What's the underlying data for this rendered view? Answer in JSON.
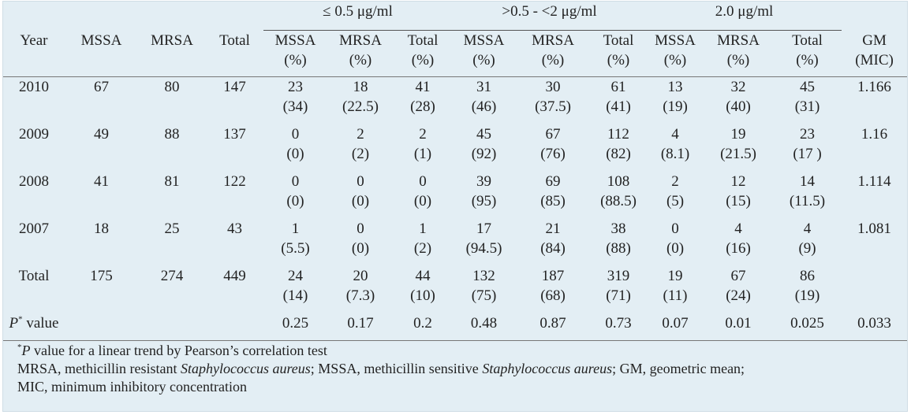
{
  "table": {
    "concentration_groups": [
      "≤ 0.5 μg/ml",
      ">0.5 - <2 μg/ml",
      "2.0 μg/ml"
    ],
    "header": {
      "year": "Year",
      "mssa": "MSSA",
      "mrsa": "MRSA",
      "total": "Total",
      "mssa_pct": [
        "MSSA",
        "(%)"
      ],
      "mrsa_pct": [
        "MRSA",
        "(%)"
      ],
      "total_pct": [
        "Total",
        "(%)"
      ],
      "gm": [
        "GM",
        "(MIC)"
      ]
    },
    "rows": [
      {
        "year": "2010",
        "mssa": "67",
        "mrsa": "80",
        "total": "147",
        "c": [
          [
            "23",
            "(34)"
          ],
          [
            "18",
            "(22.5)"
          ],
          [
            "41",
            "(28)"
          ],
          [
            "31",
            "(46)"
          ],
          [
            "30",
            "(37.5)"
          ],
          [
            "61",
            "(41)"
          ],
          [
            "13",
            "(19)"
          ],
          [
            "32",
            "(40)"
          ],
          [
            "45",
            "(31)"
          ]
        ],
        "gm": "1.166"
      },
      {
        "year": "2009",
        "mssa": "49",
        "mrsa": "88",
        "total": "137",
        "c": [
          [
            "0",
            "(0)"
          ],
          [
            "2",
            "(2)"
          ],
          [
            "2",
            "(1)"
          ],
          [
            "45",
            "(92)"
          ],
          [
            "67",
            "(76)"
          ],
          [
            "112",
            "(82)"
          ],
          [
            "4",
            "(8.1)"
          ],
          [
            "19",
            "(21.5)"
          ],
          [
            "23",
            "(17 )"
          ]
        ],
        "gm": "1.16"
      },
      {
        "year": "2008",
        "mssa": "41",
        "mrsa": "81",
        "total": "122",
        "c": [
          [
            "0",
            "(0)"
          ],
          [
            "0",
            "(0)"
          ],
          [
            "0",
            "(0)"
          ],
          [
            "39",
            "(95)"
          ],
          [
            "69",
            "(85)"
          ],
          [
            "108",
            "(88.5)"
          ],
          [
            "2",
            "(5)"
          ],
          [
            "12",
            "(15)"
          ],
          [
            "14",
            "(11.5)"
          ]
        ],
        "gm": "1.114"
      },
      {
        "year": "2007",
        "mssa": "18",
        "mrsa": "25",
        "total": "43",
        "c": [
          [
            "1",
            "(5.5)"
          ],
          [
            "0",
            "(0)"
          ],
          [
            "1",
            "(2)"
          ],
          [
            "17",
            "(94.5)"
          ],
          [
            "21",
            "(84)"
          ],
          [
            "38",
            "(88)"
          ],
          [
            "0",
            "(0)"
          ],
          [
            "4",
            "(16)"
          ],
          [
            "4",
            "(9)"
          ]
        ],
        "gm": "1.081"
      },
      {
        "year": "Total",
        "mssa": "175",
        "mrsa": "274",
        "total": "449",
        "c": [
          [
            "24",
            "(14)"
          ],
          [
            "20",
            "(7.3)"
          ],
          [
            "44",
            "(10)"
          ],
          [
            "132",
            "(75)"
          ],
          [
            "187",
            "(68)"
          ],
          [
            "319",
            "(71)"
          ],
          [
            "19",
            "(11)"
          ],
          [
            "67",
            "(24)"
          ],
          [
            "86",
            "(19)"
          ]
        ],
        "gm": ""
      }
    ],
    "p_row": {
      "label_main": "P",
      "label_sup": "*",
      "label_rest": " value",
      "values": [
        "0.25",
        "0.17",
        "0.2",
        "0.48",
        "0.87",
        "0.73",
        "0.07",
        "0.01",
        "0.025",
        "0.033"
      ]
    }
  },
  "footnotes": {
    "line1": {
      "sup": "*",
      "italic": "P",
      "rest": " value for a linear trend by Pearson’s correlation test"
    },
    "line2": {
      "a": "MRSA, methicillin resistant ",
      "b": "Staphylococcus aureus",
      "c": "; MSSA, methicillin sensitive ",
      "d": "Staphylococcus aureus",
      "e": "; GM, geometric mean;"
    },
    "line3": "MIC, minimum inhibitory concentration"
  },
  "colors": {
    "background": "#e3eef4",
    "text": "#222222",
    "rule": "#777777"
  }
}
